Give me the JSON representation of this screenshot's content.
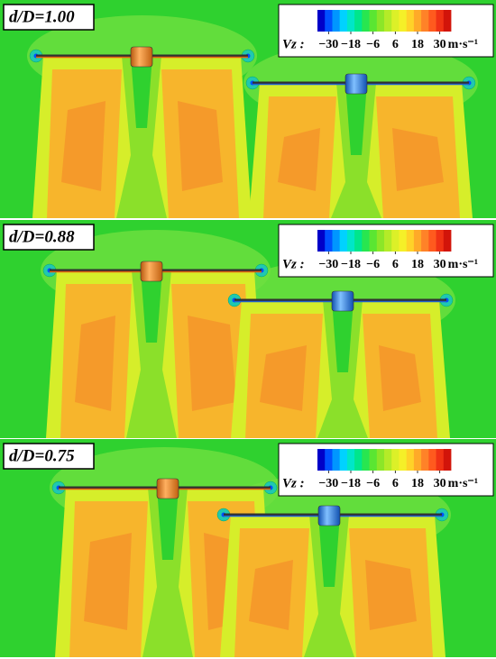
{
  "chart_data": [
    {
      "type": "contour",
      "title": "d/D=1.00",
      "colorbar": {
        "label": "Vz :",
        "unit": "m·s⁻¹",
        "clim": [
          -36,
          36
        ],
        "ticks": [
          {
            "value": -30,
            "label": "−30"
          },
          {
            "value": -18,
            "label": "−18"
          },
          {
            "value": -6,
            "label": "−6"
          },
          6,
          18,
          30
        ],
        "colors": [
          "#0000c8",
          "#0050ff",
          "#0096ff",
          "#00d2ff",
          "#00e6c8",
          "#00e68c",
          "#28e650",
          "#5ae632",
          "#8ce628",
          "#b4eb28",
          "#dcf028",
          "#f5f028",
          "#ffd228",
          "#ffaa28",
          "#ff8228",
          "#ff5a1e",
          "#f03214",
          "#d2140a"
        ]
      }
    },
    {
      "type": "contour",
      "title": "d/D=0.88",
      "colorbar": {
        "label": "Vz :",
        "unit": "m·s⁻¹",
        "clim": [
          -36,
          36
        ],
        "ticks": [
          {
            "value": -30,
            "label": "−30"
          },
          {
            "value": -18,
            "label": "−18"
          },
          {
            "value": -6,
            "label": "−6"
          },
          6,
          18,
          30
        ],
        "colors": [
          "#0000c8",
          "#0050ff",
          "#0096ff",
          "#00d2ff",
          "#00e6c8",
          "#00e68c",
          "#28e650",
          "#5ae632",
          "#8ce628",
          "#b4eb28",
          "#dcf028",
          "#f5f028",
          "#ffd228",
          "#ffaa28",
          "#ff8228",
          "#ff5a1e",
          "#f03214",
          "#d2140a"
        ]
      }
    },
    {
      "type": "contour",
      "title": "d/D=0.75",
      "colorbar": {
        "label": "Vz :",
        "unit": "m·s⁻¹",
        "clim": [
          -36,
          36
        ],
        "ticks": [
          {
            "value": -30,
            "label": "−30"
          },
          {
            "value": -18,
            "label": "−18"
          },
          {
            "value": -6,
            "label": "−6"
          },
          6,
          18,
          30
        ],
        "colors": [
          "#0000c8",
          "#0050ff",
          "#0096ff",
          "#00d2ff",
          "#00e6c8",
          "#00e68c",
          "#28e650",
          "#5ae632",
          "#8ce628",
          "#b4eb28",
          "#dcf028",
          "#f5f028",
          "#ffd228",
          "#ffaa28",
          "#ff8228",
          "#ff5a1e",
          "#f03214",
          "#d2140a"
        ]
      }
    }
  ]
}
